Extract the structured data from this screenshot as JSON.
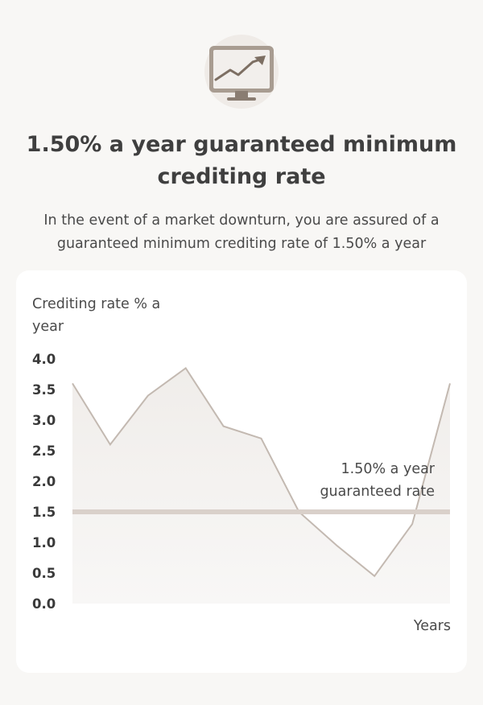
{
  "header": {
    "icon": "monitor-trend-icon",
    "title": "1.50% a year guaranteed minimum crediting rate",
    "subtitle": "In the event of a market downturn, you are assured of a guaranteed minimum crediting rate of 1.50% a year"
  },
  "colors": {
    "background": "#f8f7f5",
    "card": "#ffffff",
    "line": "#c3b9b1",
    "guarantee_line": "#d9d0ca",
    "icon_frame": "#a89c91",
    "icon_circle": "#efebe7"
  },
  "chart_data": {
    "type": "area",
    "title": "",
    "ylabel": "Crediting rate % a year",
    "xlabel": "Years",
    "ylim": [
      0,
      4.0
    ],
    "yticks": [
      "4.0",
      "3.5",
      "3.0",
      "2.5",
      "2.0",
      "1.5",
      "1.0",
      "0.5",
      "0.0"
    ],
    "grid": false,
    "series": [
      {
        "x": [
          0,
          1,
          2,
          3,
          4,
          5,
          6,
          7,
          8,
          9,
          10
        ],
        "values": [
          3.6,
          2.6,
          3.4,
          3.85,
          2.9,
          2.7,
          1.5,
          0.95,
          0.45,
          1.3,
          3.6
        ]
      }
    ],
    "reference_line": {
      "value": 1.5,
      "label": "1.50% a year guaranteed rate"
    }
  }
}
